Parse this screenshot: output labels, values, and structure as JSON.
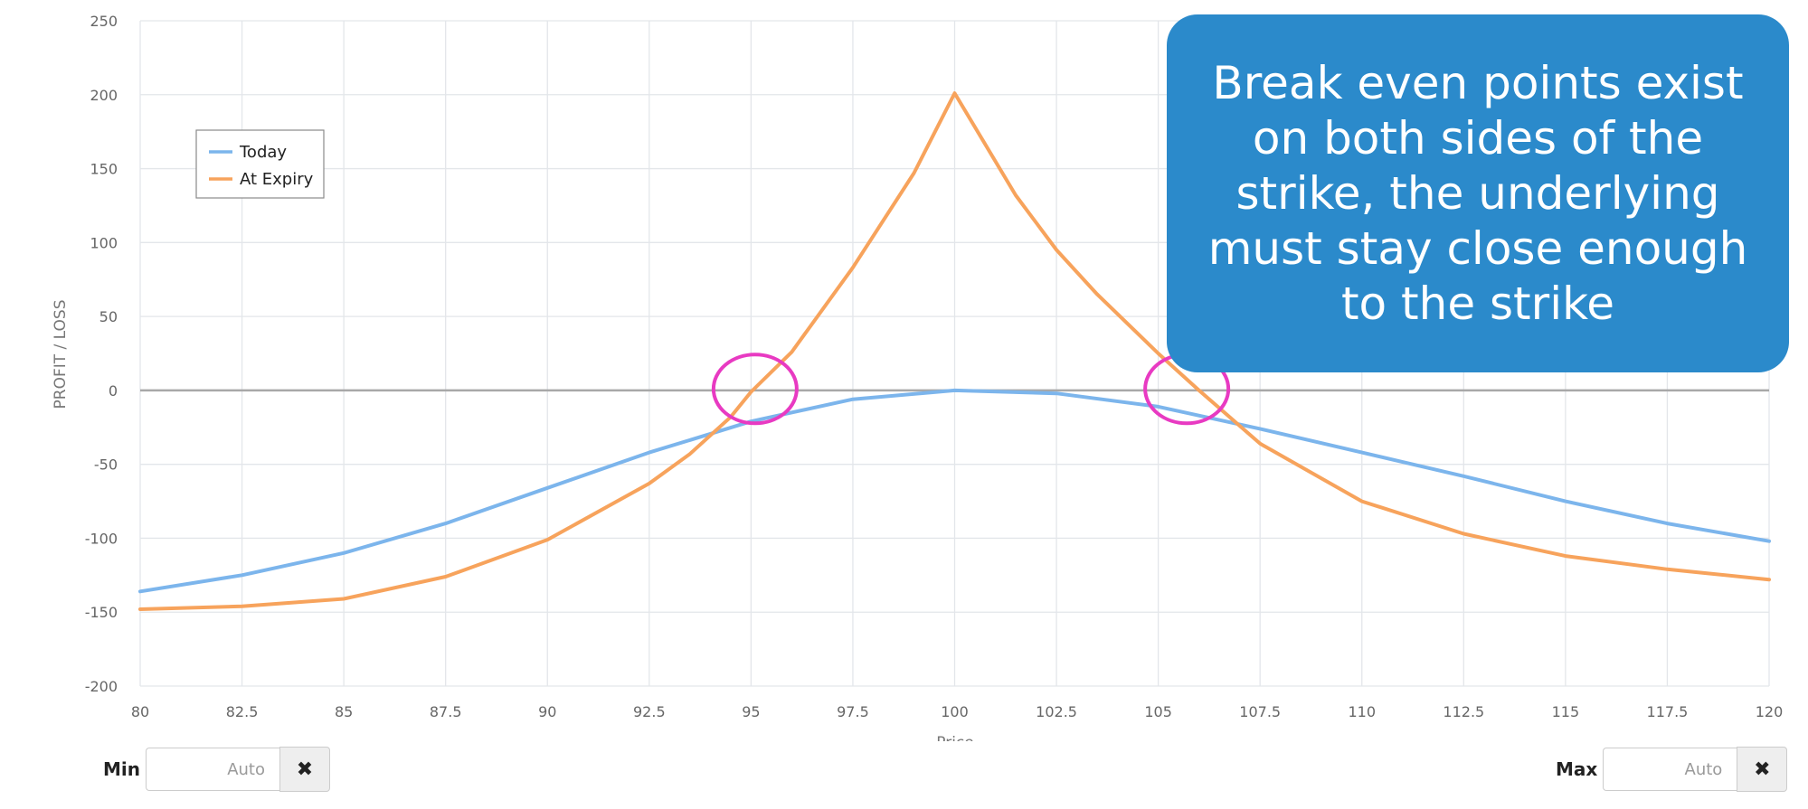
{
  "chart_data": {
    "type": "line",
    "xlabel": "Price",
    "ylabel": "PROFIT / LOSS",
    "xlim": [
      80,
      120
    ],
    "ylim": [
      -200,
      250
    ],
    "x_ticks": [
      "80",
      "82.5",
      "85",
      "87.5",
      "90",
      "92.5",
      "95",
      "97.5",
      "100",
      "102.5",
      "105",
      "107.5",
      "110",
      "112.5",
      "115",
      "117.5",
      "120"
    ],
    "y_ticks": [
      "250",
      "200",
      "150",
      "100",
      "50",
      "0",
      "-50",
      "-100",
      "-150",
      "-200"
    ],
    "grid": true,
    "legend_position": "top-left",
    "series": [
      {
        "name": "Today",
        "color": "#7cb5ec",
        "points": [
          [
            80,
            -136
          ],
          [
            82.5,
            -125
          ],
          [
            85,
            -110
          ],
          [
            87.5,
            -90
          ],
          [
            90,
            -66
          ],
          [
            92.5,
            -42
          ],
          [
            95,
            -21
          ],
          [
            97.5,
            -6
          ],
          [
            100,
            0
          ],
          [
            102.5,
            -2
          ],
          [
            105,
            -11
          ],
          [
            107.5,
            -26
          ],
          [
            110,
            -42
          ],
          [
            112.5,
            -58
          ],
          [
            115,
            -75
          ],
          [
            117.5,
            -90
          ],
          [
            120,
            -102
          ]
        ]
      },
      {
        "name": "At Expiry",
        "color": "#f7a35c",
        "points": [
          [
            80,
            -148
          ],
          [
            82.5,
            -146
          ],
          [
            85,
            -141
          ],
          [
            87.5,
            -126
          ],
          [
            90,
            -101
          ],
          [
            92.5,
            -63
          ],
          [
            93.5,
            -43
          ],
          [
            94.5,
            -18
          ],
          [
            95,
            -1
          ],
          [
            96,
            26
          ],
          [
            97.5,
            83
          ],
          [
            99,
            147
          ],
          [
            100,
            201
          ],
          [
            101.5,
            132
          ],
          [
            102.5,
            95
          ],
          [
            103.5,
            65
          ],
          [
            105,
            25
          ],
          [
            106,
            0
          ],
          [
            107.5,
            -36
          ],
          [
            110,
            -75
          ],
          [
            112.5,
            -97
          ],
          [
            115,
            -112
          ],
          [
            117.5,
            -121
          ],
          [
            120,
            -128
          ]
        ]
      }
    ],
    "annotations": [
      {
        "type": "circle",
        "x": 95.1,
        "y": 1,
        "color": "#e83ac2"
      },
      {
        "type": "circle",
        "x": 105.7,
        "y": 1,
        "color": "#e83ac2"
      }
    ]
  },
  "callout": {
    "text": "Break even points exist on both sides of the strike, the underlying must stay close enough to the strike"
  },
  "controls": {
    "min": {
      "label": "Min",
      "placeholder": "Auto",
      "clear_icon": "close-icon"
    },
    "max": {
      "label": "Max",
      "placeholder": "Auto",
      "clear_icon": "close-icon"
    }
  }
}
